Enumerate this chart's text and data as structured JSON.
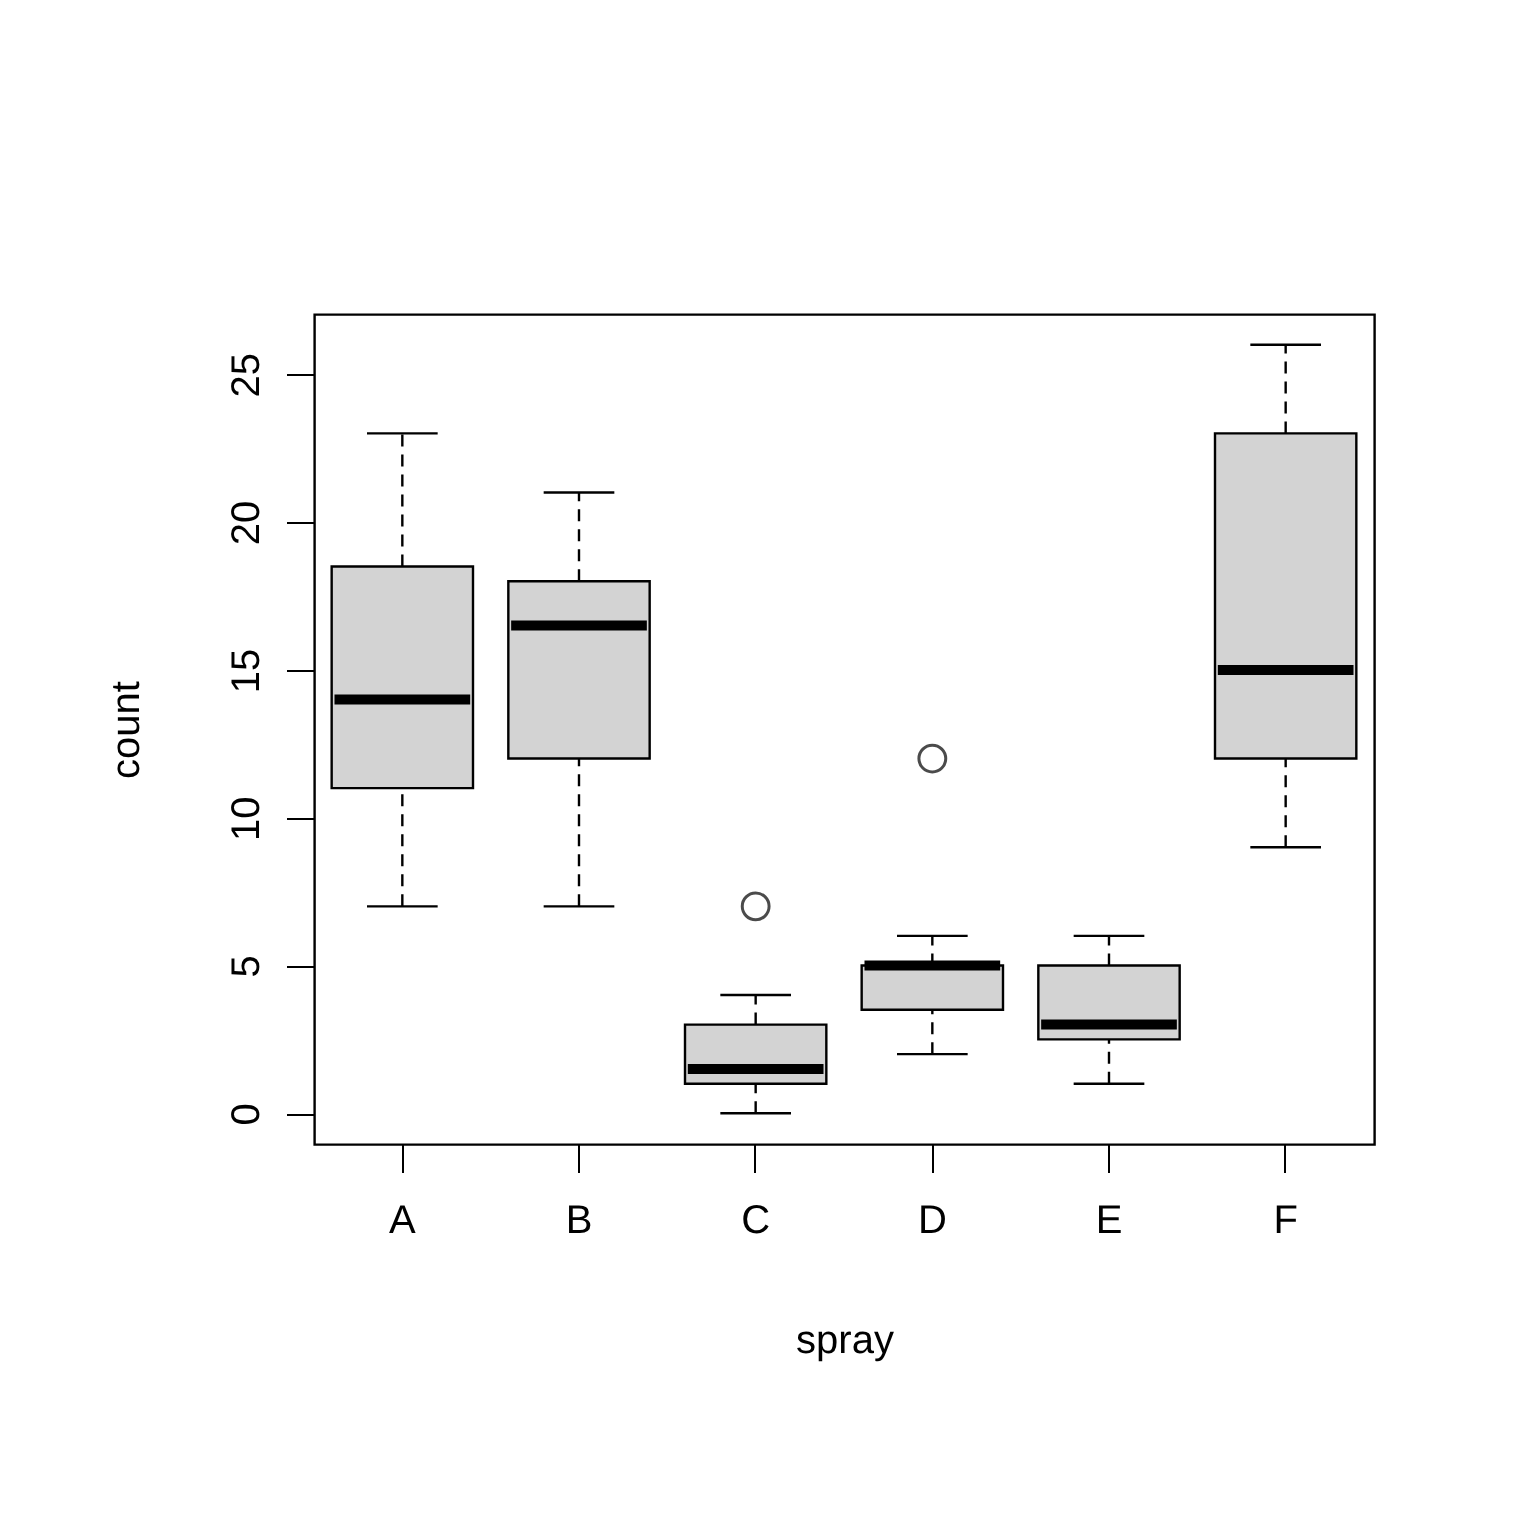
{
  "chart_data": {
    "type": "box",
    "xlabel": "spray",
    "ylabel": "count",
    "categories": [
      "A",
      "B",
      "C",
      "D",
      "E",
      "F"
    ],
    "ylim": [
      -1.04,
      27.04
    ],
    "yticks": [
      0,
      5,
      10,
      15,
      20,
      25
    ],
    "grid": false,
    "line_style": "dashed",
    "marker": "circle",
    "series": [
      {
        "color": "#d3d3d3",
        "boxes": [
          {
            "low": 7,
            "q1": 11,
            "median": 14,
            "q3": 18.5,
            "high": 23
          },
          {
            "low": 7,
            "q1": 12,
            "median": 16.5,
            "q3": 18,
            "high": 21
          },
          {
            "low": 0,
            "q1": 1,
            "median": 1.5,
            "q3": 3,
            "high": 4,
            "outliers": [
              7
            ]
          },
          {
            "low": 2,
            "q1": 3.5,
            "median": 5,
            "q3": 5,
            "high": 6,
            "outliers": [
              12
            ]
          },
          {
            "low": 1,
            "q1": 2.5,
            "median": 3,
            "q3": 5,
            "high": 6
          },
          {
            "low": 9,
            "q1": 12,
            "median": 15,
            "q3": 23,
            "high": 26
          }
        ]
      }
    ]
  }
}
